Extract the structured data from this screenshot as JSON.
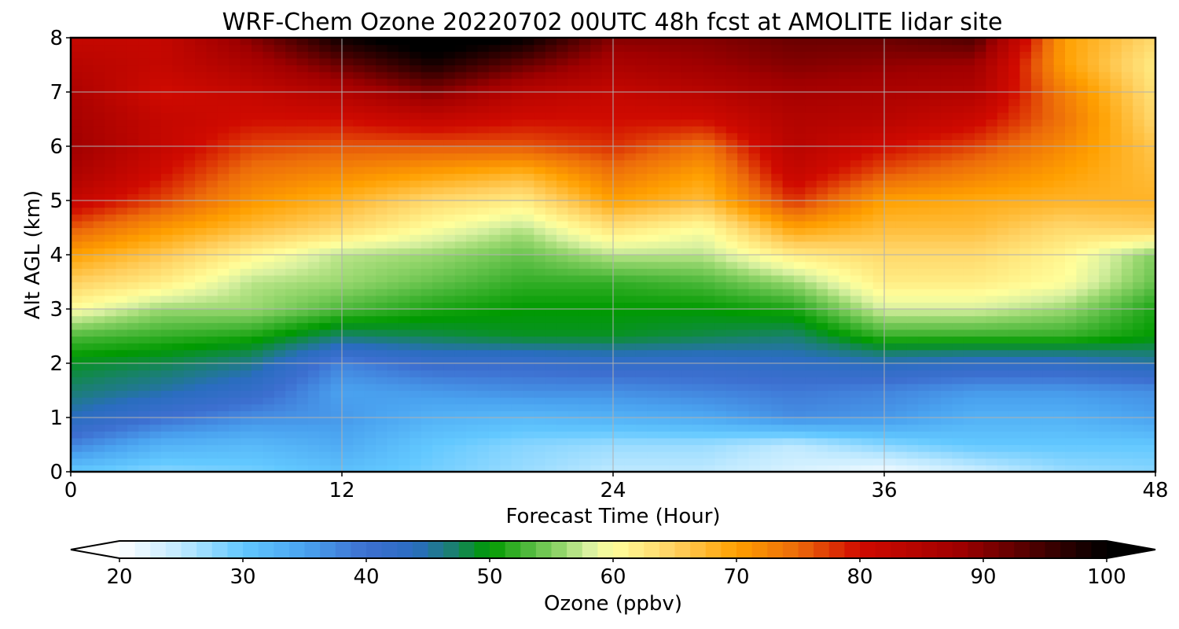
{
  "chart_data": {
    "type": "heatmap",
    "title": "WRF-Chem Ozone  20220702 00UTC 48h fcst at AMOLITE lidar site",
    "xlabel": "Forecast Time (Hour)",
    "ylabel": "Alt AGL (km)",
    "xlim": [
      0,
      48
    ],
    "ylim": [
      0,
      8
    ],
    "xticks": [
      "0",
      "12",
      "24",
      "36",
      "48"
    ],
    "yticks": [
      "0",
      "1",
      "2",
      "3",
      "4",
      "5",
      "6",
      "7",
      "8"
    ],
    "grid": true,
    "x": [
      0,
      4,
      8,
      12,
      16,
      20,
      24,
      28,
      32,
      36,
      40,
      44,
      48
    ],
    "y": [
      0,
      0.5,
      1,
      1.5,
      2,
      2.5,
      3,
      3.5,
      4,
      4.5,
      5,
      5.5,
      6,
      6.5,
      7,
      7.5,
      8
    ],
    "z": [
      [
        30,
        28,
        29,
        31,
        29,
        27,
        25,
        25,
        23,
        21,
        24,
        27,
        28
      ],
      [
        38,
        33,
        32,
        34,
        30,
        28,
        27,
        27,
        25,
        28,
        30,
        30,
        30
      ],
      [
        44,
        40,
        37,
        36,
        33,
        32,
        33,
        34,
        37,
        36,
        33,
        33,
        35
      ],
      [
        47,
        45,
        42,
        35,
        36,
        37,
        37,
        38,
        39,
        38,
        36,
        36,
        37
      ],
      [
        49,
        48,
        46,
        38,
        41,
        41,
        42,
        42,
        43,
        44,
        43,
        43,
        45
      ],
      [
        53,
        52,
        51,
        47,
        48,
        49,
        49,
        48,
        47,
        52,
        52,
        52,
        50
      ],
      [
        60,
        56,
        56,
        53,
        51,
        50,
        50,
        50,
        51,
        58,
        58,
        56,
        51
      ],
      [
        65,
        62,
        57,
        56,
        54,
        52,
        52,
        53,
        56,
        62,
        62,
        60,
        54
      ],
      [
        70,
        66,
        61,
        57,
        56,
        54,
        57,
        57,
        62,
        64,
        64,
        61,
        55
      ],
      [
        76,
        71,
        67,
        64,
        60,
        57,
        63,
        60,
        70,
        67,
        67,
        64,
        65
      ],
      [
        82,
        77,
        71,
        68,
        64,
        62,
        70,
        67,
        78,
        70,
        69,
        68,
        68
      ],
      [
        86,
        80,
        74,
        72,
        70,
        68,
        74,
        70,
        82,
        76,
        73,
        70,
        67
      ],
      [
        88,
        82,
        77,
        76,
        76,
        76,
        78,
        74,
        84,
        80,
        77,
        72,
        66
      ],
      [
        87,
        82,
        80,
        80,
        82,
        80,
        80,
        80,
        85,
        84,
        81,
        74,
        64
      ],
      [
        86,
        80,
        82,
        85,
        90,
        84,
        82,
        84,
        87,
        86,
        85,
        73,
        63
      ],
      [
        84,
        82,
        86,
        92,
        98,
        92,
        86,
        88,
        90,
        89,
        88,
        70,
        62
      ],
      [
        82,
        82,
        90,
        99,
        103,
        100,
        90,
        90,
        92,
        92,
        94,
        70,
        64
      ]
    ],
    "colorbar": {
      "label": "Ozone  (ppbv)",
      "min": 20,
      "max": 100,
      "ticks": [
        "20",
        "30",
        "40",
        "50",
        "60",
        "70",
        "80",
        "90",
        "100"
      ],
      "extend": "both",
      "stops": [
        [
          20,
          "#ffffff"
        ],
        [
          25,
          "#bfe9ff"
        ],
        [
          30,
          "#62c8ff"
        ],
        [
          35,
          "#4aa3f0"
        ],
        [
          40,
          "#3d6fd0"
        ],
        [
          44,
          "#2a6dc0"
        ],
        [
          47,
          "#1a8070"
        ],
        [
          50,
          "#009a00"
        ],
        [
          53,
          "#4cb83a"
        ],
        [
          56,
          "#9ad870"
        ],
        [
          58,
          "#d8f0a0"
        ],
        [
          60,
          "#ffff9c"
        ],
        [
          65,
          "#ffd060"
        ],
        [
          70,
          "#ffa000"
        ],
        [
          75,
          "#ec6a0a"
        ],
        [
          80,
          "#d00a00"
        ],
        [
          88,
          "#a00000"
        ],
        [
          95,
          "#400000"
        ],
        [
          100,
          "#000000"
        ]
      ]
    }
  }
}
